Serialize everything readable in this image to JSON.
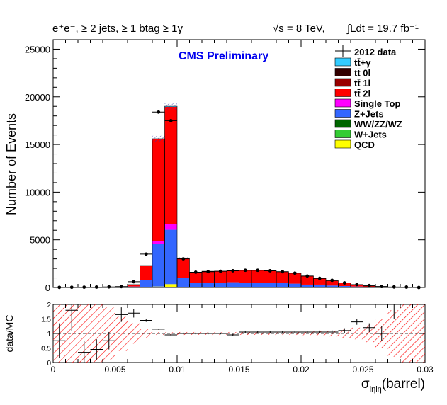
{
  "header": {
    "selection": "e⁺e⁻, ≥ 2 jets, ≥ 1 btag ≥ 1γ",
    "energy": "√s = 8 TeV,",
    "lumi": "∫Ldt = 19.7 fb⁻¹",
    "cms_label": "CMS Preliminary"
  },
  "colors": {
    "ttgamma": "#33ccff",
    "tt0l": "#330000",
    "tt1l": "#990000",
    "tt2l": "#ff0000",
    "singletop": "#ff00ff",
    "zjets": "#3366ff",
    "diboson": "#006600",
    "wjets": "#33cc33",
    "qcd": "#ffff00",
    "uncertainty": "#ff0000"
  },
  "chart_data": [
    {
      "type": "bar",
      "stacked": true,
      "log_y": false,
      "xlabel": "σ_iηiη(barrel)",
      "ylabel": "Number of Events",
      "xlim": [
        0,
        0.03
      ],
      "ylim": [
        0,
        26000
      ],
      "y_ticks": [
        0,
        5000,
        10000,
        15000,
        20000,
        25000
      ],
      "y_tick_labels": [
        "0",
        "5000",
        "10000",
        "15000",
        "20000",
        "25000"
      ],
      "legend_position": "top-right",
      "bin_edges": [
        0,
        0.001,
        0.002,
        0.003,
        0.004,
        0.005,
        0.006,
        0.007,
        0.008,
        0.009,
        0.01,
        0.011,
        0.012,
        0.013,
        0.014,
        0.015,
        0.016,
        0.017,
        0.018,
        0.019,
        0.02,
        0.021,
        0.022,
        0.023,
        0.024,
        0.025,
        0.026,
        0.027,
        0.028,
        0.029,
        0.03
      ],
      "mc_series": [
        {
          "name": "tt̄+γ",
          "values": [
            0,
            0,
            0,
            0,
            0,
            0,
            0,
            0,
            0,
            60,
            0,
            0,
            0,
            0,
            0,
            0,
            0,
            0,
            0,
            0,
            0,
            0,
            0,
            0,
            0,
            0,
            0,
            0,
            0,
            0
          ]
        },
        {
          "name": "tt̄ 0l",
          "values": [
            0,
            0,
            0,
            0,
            0,
            0,
            0,
            0,
            0,
            0,
            0,
            0,
            0,
            0,
            0,
            0,
            0,
            0,
            0,
            0,
            0,
            0,
            0,
            0,
            0,
            0,
            0,
            0,
            0,
            0
          ]
        },
        {
          "name": "tt̄ 1l",
          "values": [
            0,
            0,
            0,
            0,
            0,
            0,
            0,
            0,
            0,
            0,
            0,
            0,
            0,
            0,
            0,
            0,
            0,
            0,
            0,
            0,
            0,
            0,
            0,
            0,
            0,
            0,
            0,
            0,
            0,
            0
          ]
        },
        {
          "name": "tt̄ 2l",
          "values": [
            0,
            0,
            0,
            0,
            0,
            0,
            200,
            1500,
            10700,
            12300,
            2100,
            1100,
            1200,
            1200,
            1200,
            1300,
            1300,
            1300,
            1200,
            1100,
            900,
            700,
            500,
            330,
            200,
            100,
            50,
            25,
            10,
            0
          ]
        },
        {
          "name": "Single Top",
          "values": [
            0,
            0,
            0,
            0,
            0,
            0,
            0,
            0,
            300,
            600,
            0,
            0,
            0,
            0,
            0,
            0,
            0,
            0,
            0,
            0,
            0,
            0,
            0,
            0,
            0,
            0,
            0,
            0,
            0,
            0
          ]
        },
        {
          "name": "Z+Jets",
          "values": [
            0,
            0,
            0,
            0,
            0,
            0,
            100,
            800,
            4500,
            5700,
            1000,
            500,
            500,
            500,
            550,
            500,
            500,
            500,
            450,
            400,
            300,
            300,
            200,
            150,
            100,
            50,
            30,
            20,
            10,
            0
          ]
        },
        {
          "name": "WW/ZZ/WZ",
          "values": [
            0,
            0,
            0,
            0,
            0,
            0,
            0,
            0,
            0,
            0,
            0,
            0,
            0,
            0,
            0,
            0,
            0,
            0,
            0,
            0,
            0,
            0,
            0,
            0,
            0,
            0,
            0,
            0,
            0,
            0
          ]
        },
        {
          "name": "W+Jets",
          "values": [
            0,
            0,
            0,
            0,
            0,
            0,
            0,
            0,
            0,
            0,
            0,
            0,
            0,
            0,
            0,
            0,
            0,
            0,
            0,
            0,
            0,
            0,
            0,
            0,
            0,
            0,
            0,
            0,
            0,
            0
          ]
        },
        {
          "name": "QCD",
          "values": [
            0,
            0,
            0,
            0,
            0,
            0,
            0,
            0,
            100,
            350,
            0,
            0,
            0,
            0,
            0,
            0,
            0,
            0,
            0,
            0,
            0,
            0,
            0,
            0,
            0,
            0,
            0,
            0,
            0,
            0
          ]
        }
      ],
      "data_series": {
        "name": "2012 data",
        "values": [
          10,
          20,
          30,
          40,
          60,
          90,
          600,
          3500,
          18400,
          17500,
          3000,
          1600,
          1650,
          1700,
          1750,
          1800,
          1800,
          1750,
          1650,
          1500,
          1200,
          950,
          750,
          480,
          300,
          200,
          100,
          50,
          40,
          0
        ]
      }
    },
    {
      "type": "scatter",
      "ylabel": "data/MC",
      "xlim": [
        0,
        0.03
      ],
      "ylim": [
        0,
        2
      ],
      "x_ticks": [
        0,
        0.005,
        0.01,
        0.015,
        0.02,
        0.025,
        0.03
      ],
      "x_tick_labels": [
        "0",
        "0.005",
        "0.01",
        "0.015",
        "0.02",
        "0.025",
        "0.03"
      ],
      "y_ticks": [
        0,
        0.5,
        1,
        1.5,
        2
      ],
      "y_tick_labels": [
        "0",
        "0.5",
        "1",
        "1.5",
        "2"
      ],
      "x": [
        0.0005,
        0.0015,
        0.0025,
        0.0035,
        0.0045,
        0.0055,
        0.0065,
        0.0075,
        0.0085,
        0.0095,
        0.0105,
        0.0115,
        0.0125,
        0.0135,
        0.0145,
        0.0155,
        0.0165,
        0.0175,
        0.0185,
        0.0195,
        0.0205,
        0.0215,
        0.0225,
        0.0235,
        0.0245,
        0.0255,
        0.0265,
        0.0275
      ],
      "ratio": [
        0.75,
        1.8,
        0.35,
        0.45,
        0.75,
        1.65,
        1.7,
        1.45,
        1.15,
        0.95,
        1.0,
        1.0,
        1.0,
        1.0,
        0.95,
        1.05,
        1.05,
        1.05,
        1.05,
        1.05,
        1.05,
        1.05,
        1.05,
        1.1,
        1.4,
        1.2,
        1.0,
        2.0
      ],
      "ratio_err": [
        0.6,
        0.7,
        0.4,
        0.35,
        0.3,
        0.25,
        0.15,
        0.05,
        0.02,
        0.02,
        0.03,
        0.03,
        0.03,
        0.03,
        0.03,
        0.03,
        0.03,
        0.03,
        0.03,
        0.03,
        0.04,
        0.05,
        0.06,
        0.08,
        0.1,
        0.15,
        0.25,
        0.5
      ],
      "band_halfwidth": [
        1.0,
        1.0,
        1.0,
        1.0,
        0.9,
        0.6,
        0.35,
        0.15,
        0.05,
        0.04,
        0.05,
        0.05,
        0.05,
        0.05,
        0.05,
        0.05,
        0.05,
        0.05,
        0.05,
        0.05,
        0.06,
        0.08,
        0.1,
        0.15,
        0.2,
        0.3,
        0.5,
        0.8,
        1.0,
        1.0
      ]
    }
  ]
}
